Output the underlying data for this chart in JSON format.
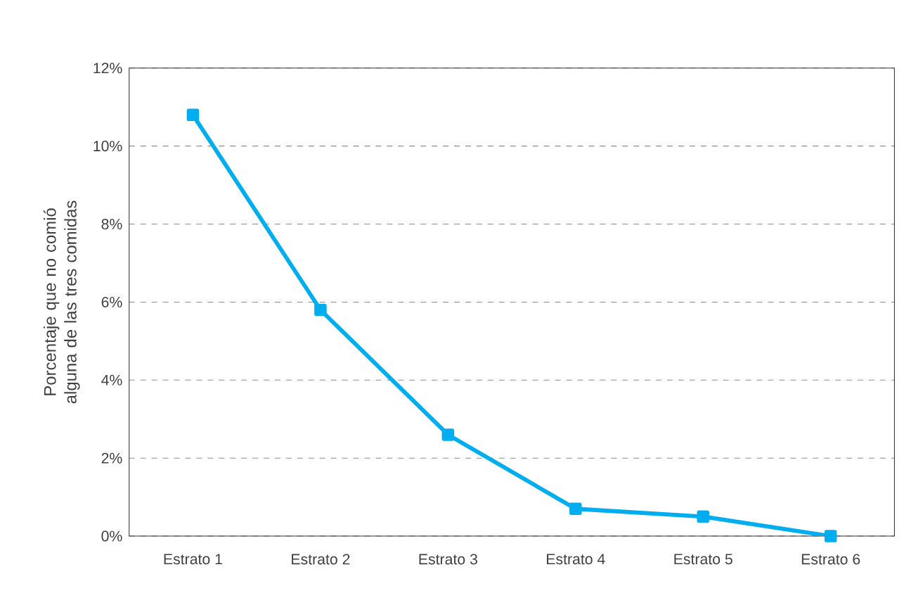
{
  "chart_data": {
    "type": "line",
    "ylabel": "Porcentaje que no comió alguna de las tres comidas",
    "categories": [
      "Estrato 1",
      "Estrato 2",
      "Estrato 3",
      "Estrato 4",
      "Estrato 5",
      "Estrato 6"
    ],
    "series": [
      {
        "color": "#00aeef",
        "values": [
          10.8,
          5.8,
          2.6,
          0.7,
          0.5,
          0.0
        ]
      }
    ],
    "ylim": [
      0,
      12
    ],
    "yticks": [
      {
        "value": 0,
        "label": "0%"
      },
      {
        "value": 2,
        "label": "2%"
      },
      {
        "value": 4,
        "label": "4%"
      },
      {
        "value": 6,
        "label": "6%"
      },
      {
        "value": 8,
        "label": "8%"
      },
      {
        "value": 10,
        "label": "10%"
      },
      {
        "value": 12,
        "label": "12%"
      }
    ],
    "grid": "y",
    "marker": "square",
    "line_style": "solid"
  }
}
